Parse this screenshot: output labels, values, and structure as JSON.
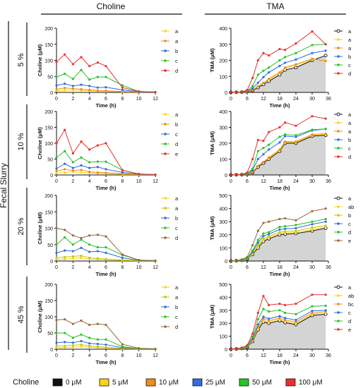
{
  "figure": {
    "col_headers": [
      "Choline",
      "TMA"
    ],
    "row_group_label": "Fecal Slurry",
    "row_labels": [
      "5 %",
      "10 %",
      "20 %",
      "45 %"
    ],
    "legend": {
      "title": "Choline",
      "items": [
        {
          "label": "0 μM",
          "color": "#111111"
        },
        {
          "label": "5 μM",
          "color": "#ffd21a"
        },
        {
          "label": "10 μM",
          "color": "#f08c18"
        },
        {
          "label": "25 μM",
          "color": "#2f6de0"
        },
        {
          "label": "50 μM",
          "color": "#27c427"
        },
        {
          "label": "100 μM",
          "color": "#e8312d"
        }
      ]
    }
  },
  "chart_data": [
    {
      "type": "line",
      "panel": "choline-5",
      "xlabel": "Time (h)",
      "ylabel": "Choline (μM)",
      "xlim": [
        0,
        12
      ],
      "ylim": [
        0,
        200
      ],
      "xticks": [
        0,
        2,
        4,
        6,
        8,
        10,
        12
      ],
      "yticks": [
        0,
        50,
        100,
        150,
        200
      ],
      "x": [
        0,
        1,
        2,
        3,
        4,
        5,
        6,
        8,
        10,
        12
      ],
      "series": [
        {
          "letter": "a",
          "color": "#ffd21a",
          "values": [
            5,
            7,
            8,
            6,
            5,
            4,
            3,
            2,
            1,
            1
          ]
        },
        {
          "letter": "a",
          "color": "#f08c18",
          "values": [
            10,
            14,
            12,
            10,
            8,
            6,
            5,
            3,
            2,
            1
          ]
        },
        {
          "letter": "b",
          "color": "#2f6de0",
          "values": [
            22,
            27,
            20,
            24,
            20,
            15,
            16,
            8,
            2,
            1
          ]
        },
        {
          "letter": "c",
          "color": "#27c427",
          "values": [
            48,
            58,
            42,
            70,
            40,
            48,
            48,
            22,
            3,
            1
          ]
        },
        {
          "letter": "d",
          "color": "#e8312d",
          "values": [
            95,
            118,
            88,
            110,
            82,
            93,
            82,
            15,
            3,
            1
          ]
        }
      ]
    },
    {
      "type": "line",
      "panel": "tma-5",
      "xlabel": "Time (h)",
      "ylabel": "TMA (μM)",
      "xlim": [
        0,
        36
      ],
      "ylim": [
        0,
        400
      ],
      "xticks": [
        0,
        6,
        12,
        18,
        24,
        30,
        36
      ],
      "yticks": [
        0,
        100,
        200,
        300,
        400
      ],
      "x": [
        0,
        2,
        4,
        6,
        8,
        10,
        12,
        14,
        18,
        20,
        24,
        30,
        35
      ],
      "series": [
        {
          "letter": "a",
          "color": "#111111",
          "values": [
            0,
            1,
            2,
            5,
            12,
            30,
            50,
            70,
            110,
            140,
            155,
            200,
            230
          ]
        },
        {
          "letter": "a",
          "color": "#ffd21a",
          "values": [
            0,
            1,
            2,
            6,
            15,
            35,
            58,
            80,
            120,
            150,
            170,
            205,
            200
          ]
        },
        {
          "letter": "a",
          "color": "#f08c18",
          "values": [
            0,
            1,
            2,
            6,
            16,
            38,
            60,
            85,
            125,
            155,
            175,
            210,
            195
          ]
        },
        {
          "letter": "b",
          "color": "#2f6de0",
          "values": [
            0,
            1,
            3,
            8,
            25,
            60,
            95,
            125,
            165,
            185,
            205,
            245,
            260
          ]
        },
        {
          "letter": "c",
          "color": "#27c427",
          "values": [
            0,
            1,
            3,
            10,
            40,
            110,
            135,
            155,
            200,
            220,
            245,
            295,
            300
          ]
        },
        {
          "letter": "d",
          "color": "#e8312d",
          "values": [
            0,
            2,
            4,
            15,
            90,
            200,
            245,
            230,
            270,
            265,
            305,
            380,
            300
          ]
        }
      ]
    },
    {
      "type": "line",
      "panel": "choline-10",
      "xlabel": "Time (h)",
      "ylabel": "Choline (μM)",
      "xlim": [
        0,
        12
      ],
      "ylim": [
        0,
        200
      ],
      "xticks": [
        0,
        2,
        4,
        6,
        8,
        10,
        12
      ],
      "yticks": [
        0,
        50,
        100,
        150,
        200
      ],
      "x": [
        0,
        1,
        2,
        3,
        4,
        5,
        6,
        8,
        10,
        12
      ],
      "series": [
        {
          "letter": "a",
          "color": "#ffd21a",
          "values": [
            5,
            8,
            10,
            8,
            6,
            5,
            4,
            2,
            1,
            1
          ]
        },
        {
          "letter": "b",
          "color": "#f08c18",
          "values": [
            12,
            18,
            14,
            16,
            10,
            8,
            7,
            4,
            2,
            1
          ]
        },
        {
          "letter": "c",
          "color": "#2f6de0",
          "values": [
            20,
            35,
            22,
            30,
            22,
            25,
            18,
            8,
            2,
            1
          ]
        },
        {
          "letter": "d",
          "color": "#27c427",
          "values": [
            55,
            75,
            40,
            55,
            40,
            42,
            42,
            15,
            3,
            1
          ]
        },
        {
          "letter": "e",
          "color": "#e8312d",
          "values": [
            100,
            142,
            68,
            105,
            80,
            93,
            100,
            15,
            3,
            1
          ]
        }
      ]
    },
    {
      "type": "line",
      "panel": "tma-10",
      "xlabel": "Time (h)",
      "ylabel": "TMA (μM)",
      "xlim": [
        0,
        36
      ],
      "ylim": [
        0,
        400
      ],
      "xticks": [
        0,
        6,
        12,
        18,
        24,
        30,
        36
      ],
      "yticks": [
        0,
        100,
        200,
        300,
        400
      ],
      "x": [
        0,
        2,
        4,
        6,
        8,
        10,
        12,
        14,
        18,
        20,
        24,
        30,
        35
      ],
      "series": [
        {
          "letter": "a",
          "color": "#111111",
          "values": [
            0,
            1,
            2,
            5,
            15,
            50,
            75,
            100,
            150,
            200,
            200,
            245,
            250
          ]
        },
        {
          "letter": "a",
          "color": "#ffd21a",
          "values": [
            0,
            1,
            2,
            6,
            18,
            55,
            80,
            105,
            155,
            205,
            205,
            250,
            255
          ]
        },
        {
          "letter": "a",
          "color": "#f08c18",
          "values": [
            0,
            1,
            2,
            6,
            18,
            58,
            82,
            110,
            160,
            210,
            210,
            255,
            260
          ]
        },
        {
          "letter": "b",
          "color": "#2f6de0",
          "values": [
            0,
            1,
            3,
            8,
            30,
            100,
            130,
            160,
            205,
            245,
            240,
            280,
            290
          ]
        },
        {
          "letter": "c",
          "color": "#27c427",
          "values": [
            0,
            1,
            3,
            10,
            40,
            150,
            170,
            190,
            240,
            255,
            250,
            285,
            290
          ]
        },
        {
          "letter": "d",
          "color": "#e8312d",
          "values": [
            0,
            2,
            4,
            15,
            100,
            220,
            215,
            270,
            300,
            330,
            310,
            370,
            355
          ]
        }
      ]
    },
    {
      "type": "line",
      "panel": "choline-20",
      "xlabel": "Time (h)",
      "ylabel": "Choline (μM)",
      "xlim": [
        0,
        12
      ],
      "ylim": [
        0,
        200
      ],
      "xticks": [
        0,
        2,
        4,
        6,
        8,
        10,
        12
      ],
      "yticks": [
        0,
        50,
        100,
        150,
        200
      ],
      "x": [
        0,
        1,
        2,
        3,
        4,
        5,
        6,
        8,
        10,
        12
      ],
      "series": [
        {
          "letter": "a",
          "color": "#ffd21a",
          "values": [
            5,
            6,
            8,
            10,
            6,
            5,
            4,
            2,
            1,
            1
          ]
        },
        {
          "letter": "a",
          "color": "#c8c800",
          "values": [
            10,
            12,
            14,
            16,
            10,
            8,
            6,
            3,
            2,
            1
          ]
        },
        {
          "letter": "b",
          "color": "#2f6de0",
          "values": [
            25,
            32,
            30,
            40,
            28,
            30,
            25,
            10,
            2,
            1
          ]
        },
        {
          "letter": "c",
          "color": "#27c427",
          "values": [
            50,
            72,
            50,
            65,
            50,
            42,
            42,
            18,
            3,
            1
          ]
        },
        {
          "letter": "d",
          "color": "#9a6b3a",
          "values": [
            100,
            95,
            78,
            70,
            78,
            80,
            75,
            20,
            3,
            1
          ]
        }
      ]
    },
    {
      "type": "line",
      "panel": "tma-20",
      "xlabel": "Time (h)",
      "ylabel": "TMA (μM)",
      "xlim": [
        0,
        36
      ],
      "ylim": [
        0,
        500
      ],
      "xticks": [
        0,
        6,
        12,
        18,
        24,
        30,
        36
      ],
      "yticks": [
        0,
        100,
        200,
        300,
        400,
        500
      ],
      "x": [
        0,
        2,
        4,
        6,
        8,
        10,
        12,
        14,
        18,
        20,
        24,
        30,
        35
      ],
      "series": [
        {
          "letter": "a",
          "color": "#111111",
          "values": [
            0,
            2,
            5,
            15,
            50,
            100,
            150,
            170,
            200,
            205,
            210,
            230,
            250
          ]
        },
        {
          "letter": "ab",
          "color": "#ffd21a",
          "values": [
            0,
            2,
            6,
            16,
            55,
            110,
            160,
            180,
            210,
            215,
            220,
            240,
            260
          ]
        },
        {
          "letter": "b",
          "color": "#c8c800",
          "values": [
            0,
            2,
            6,
            18,
            60,
            120,
            170,
            190,
            220,
            225,
            230,
            255,
            270
          ]
        },
        {
          "letter": "c",
          "color": "#2f6de0",
          "values": [
            0,
            3,
            8,
            20,
            70,
            140,
            190,
            205,
            240,
            245,
            250,
            280,
            300
          ]
        },
        {
          "letter": "d",
          "color": "#27c427",
          "values": [
            0,
            3,
            9,
            22,
            80,
            160,
            210,
            220,
            260,
            265,
            275,
            300,
            320
          ]
        },
        {
          "letter": "e",
          "color": "#9a6b3a",
          "values": [
            0,
            4,
            12,
            30,
            120,
            230,
            290,
            300,
            320,
            325,
            310,
            380,
            400
          ]
        }
      ]
    },
    {
      "type": "line",
      "panel": "choline-45",
      "xlabel": "Time (h)",
      "ylabel": "Choline (μM)",
      "xlim": [
        0,
        12
      ],
      "ylim": [
        0,
        200
      ],
      "xticks": [
        0,
        2,
        4,
        6,
        8,
        10,
        12
      ],
      "yticks": [
        0,
        50,
        100,
        150,
        200
      ],
      "x": [
        0,
        1,
        2,
        3,
        4,
        5,
        6,
        8,
        10,
        12
      ],
      "series": [
        {
          "letter": "a",
          "color": "#ffd21a",
          "values": [
            5,
            5,
            6,
            8,
            6,
            5,
            4,
            2,
            1,
            1
          ]
        },
        {
          "letter": "a",
          "color": "#c8c800",
          "values": [
            10,
            10,
            12,
            14,
            10,
            8,
            6,
            3,
            2,
            1
          ]
        },
        {
          "letter": "b",
          "color": "#2f6de0",
          "values": [
            20,
            22,
            20,
            25,
            18,
            16,
            14,
            5,
            2,
            1
          ]
        },
        {
          "letter": "c",
          "color": "#27c427",
          "values": [
            50,
            50,
            35,
            45,
            35,
            30,
            30,
            8,
            2,
            1
          ]
        },
        {
          "letter": "d",
          "color": "#9a6b3a",
          "values": [
            90,
            92,
            78,
            88,
            75,
            78,
            75,
            15,
            3,
            1
          ]
        }
      ]
    },
    {
      "type": "line",
      "panel": "tma-45",
      "xlabel": "Time (h)",
      "ylabel": "TMA (μM)",
      "xlim": [
        0,
        36
      ],
      "ylim": [
        0,
        500
      ],
      "xticks": [
        0,
        6,
        12,
        18,
        24,
        30,
        36
      ],
      "yticks": [
        0,
        100,
        200,
        300,
        400,
        500
      ],
      "x": [
        0,
        2,
        4,
        6,
        8,
        10,
        12,
        14,
        18,
        20,
        24,
        30,
        35
      ],
      "series": [
        {
          "letter": "a",
          "color": "#111111",
          "values": [
            0,
            2,
            5,
            15,
            60,
            150,
            210,
            200,
            220,
            205,
            190,
            260,
            270
          ]
        },
        {
          "letter": "ab",
          "color": "#ffd21a",
          "values": [
            0,
            2,
            6,
            16,
            65,
            160,
            220,
            210,
            230,
            215,
            200,
            270,
            280
          ]
        },
        {
          "letter": "bc",
          "color": "#f08c18",
          "values": [
            0,
            2,
            6,
            18,
            70,
            170,
            235,
            220,
            240,
            225,
            210,
            280,
            290
          ]
        },
        {
          "letter": "c",
          "color": "#2f6de0",
          "values": [
            0,
            3,
            8,
            20,
            80,
            190,
            250,
            235,
            255,
            240,
            225,
            295,
            300
          ]
        },
        {
          "letter": "d",
          "color": "#27c427",
          "values": [
            0,
            3,
            9,
            22,
            95,
            230,
            310,
            290,
            300,
            280,
            270,
            330,
            335
          ]
        },
        {
          "letter": "e",
          "color": "#e8312d",
          "values": [
            0,
            4,
            12,
            30,
            120,
            280,
            410,
            340,
            350,
            340,
            350,
            420,
            420
          ]
        }
      ]
    }
  ]
}
